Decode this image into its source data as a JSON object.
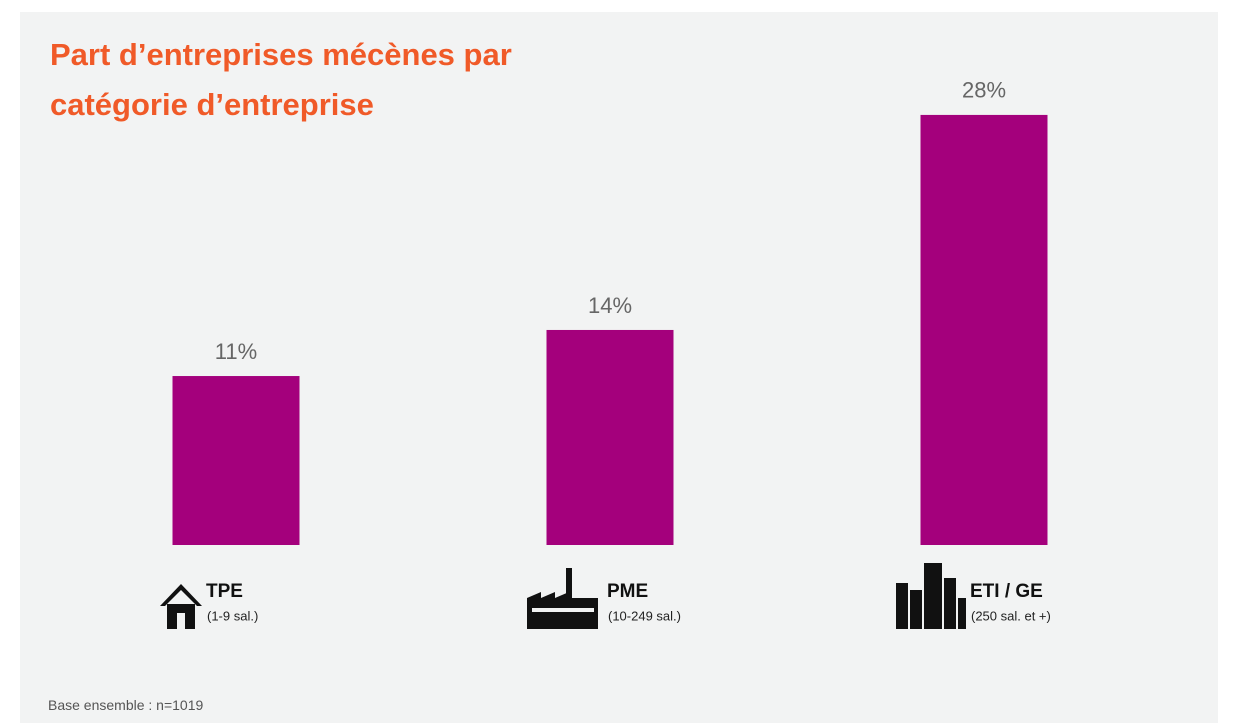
{
  "chart_data": {
    "type": "bar",
    "title": "Part d’entreprises mécènes par catégorie d’entreprise",
    "categories": [
      "TPE",
      "PME",
      "ETI / GE"
    ],
    "category_notes": [
      "(1-9 sal.)",
      "(10-249 sal.)",
      "(250 sal. et +)"
    ],
    "values": [
      11,
      14,
      28
    ],
    "value_labels": [
      "11%",
      "14%",
      "28%"
    ],
    "color": "#a4007c",
    "footnote": "Base ensemble : n=1019"
  }
}
